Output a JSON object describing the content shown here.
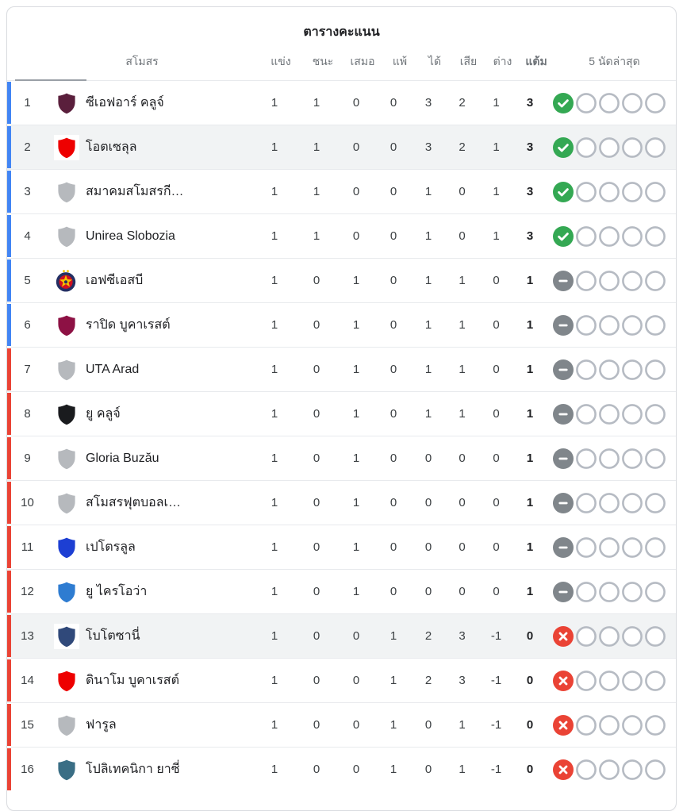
{
  "title": "ตารางคะแนน",
  "columns": {
    "club": "สโมสร",
    "played": "แข่ง",
    "win": "ชนะ",
    "draw": "เสมอ",
    "loss": "แพ้",
    "gf": "ได้",
    "ga": "เสีย",
    "gd": "ต่าง",
    "pts": "แต้ม",
    "form": "5 นัดล่าสุด"
  },
  "colors": {
    "accent_blue": "#4285f4",
    "accent_red": "#ea4335",
    "form_win": "#34a853",
    "form_draw": "#80868b",
    "form_loss": "#ea4335",
    "form_empty_border": "#b6bbc3",
    "row_highlight": "#f1f3f4",
    "generic_badge": "#b6b9bd"
  },
  "standings": [
    {
      "rank": "1",
      "name": "ซีเอฟอาร์ คลูจ์",
      "badge": {
        "type": "shield",
        "color": "#5a1f3c",
        "bg": "transparent"
      },
      "zone": "blue",
      "highlight": false,
      "played": "1",
      "win": "1",
      "draw": "0",
      "loss": "0",
      "gf": "3",
      "ga": "2",
      "gd": "1",
      "pts": "3",
      "form": "win"
    },
    {
      "rank": "2",
      "name": "โอตเซลุล",
      "badge": {
        "type": "shield",
        "color": "#ee0000",
        "bg": "#ffffff"
      },
      "zone": "blue",
      "highlight": true,
      "played": "1",
      "win": "1",
      "draw": "0",
      "loss": "0",
      "gf": "3",
      "ga": "2",
      "gd": "1",
      "pts": "3",
      "form": "win"
    },
    {
      "rank": "3",
      "name": "สมาคมสโมสรกี…",
      "badge": {
        "type": "shield",
        "color": "#b6b9bd",
        "bg": "transparent"
      },
      "zone": "blue",
      "highlight": false,
      "played": "1",
      "win": "1",
      "draw": "0",
      "loss": "0",
      "gf": "1",
      "ga": "0",
      "gd": "1",
      "pts": "3",
      "form": "win"
    },
    {
      "rank": "4",
      "name": "Unirea Slobozia",
      "badge": {
        "type": "shield",
        "color": "#b6b9bd",
        "bg": "transparent"
      },
      "zone": "blue",
      "highlight": false,
      "played": "1",
      "win": "1",
      "draw": "0",
      "loss": "0",
      "gf": "1",
      "ga": "0",
      "gd": "1",
      "pts": "3",
      "form": "win"
    },
    {
      "rank": "5",
      "name": "เอฟซีเอสบี",
      "badge": {
        "type": "fcsb",
        "color": "#232f63",
        "bg": "transparent"
      },
      "zone": "blue",
      "highlight": false,
      "played": "1",
      "win": "0",
      "draw": "1",
      "loss": "0",
      "gf": "1",
      "ga": "1",
      "gd": "0",
      "pts": "1",
      "form": "draw"
    },
    {
      "rank": "6",
      "name": "ราปิด บูคาเรสต์",
      "badge": {
        "type": "shield",
        "color": "#8d1144",
        "bg": "transparent"
      },
      "zone": "blue",
      "highlight": false,
      "played": "1",
      "win": "0",
      "draw": "1",
      "loss": "0",
      "gf": "1",
      "ga": "1",
      "gd": "0",
      "pts": "1",
      "form": "draw"
    },
    {
      "rank": "7",
      "name": "UTA Arad",
      "badge": {
        "type": "shield",
        "color": "#b6b9bd",
        "bg": "transparent"
      },
      "zone": "red",
      "highlight": false,
      "played": "1",
      "win": "0",
      "draw": "1",
      "loss": "0",
      "gf": "1",
      "ga": "1",
      "gd": "0",
      "pts": "1",
      "form": "draw"
    },
    {
      "rank": "8",
      "name": "ยู คลูจ์",
      "badge": {
        "type": "shield",
        "color": "#1a1b1e",
        "bg": "transparent"
      },
      "zone": "red",
      "highlight": false,
      "played": "1",
      "win": "0",
      "draw": "1",
      "loss": "0",
      "gf": "1",
      "ga": "1",
      "gd": "0",
      "pts": "1",
      "form": "draw"
    },
    {
      "rank": "9",
      "name": "Gloria Buzău",
      "badge": {
        "type": "shield",
        "color": "#b6b9bd",
        "bg": "transparent"
      },
      "zone": "red",
      "highlight": false,
      "played": "1",
      "win": "0",
      "draw": "1",
      "loss": "0",
      "gf": "0",
      "ga": "0",
      "gd": "0",
      "pts": "1",
      "form": "draw"
    },
    {
      "rank": "10",
      "name": "สโมสรฟุตบอลเ…",
      "badge": {
        "type": "shield",
        "color": "#b6b9bd",
        "bg": "transparent"
      },
      "zone": "red",
      "highlight": false,
      "played": "1",
      "win": "0",
      "draw": "1",
      "loss": "0",
      "gf": "0",
      "ga": "0",
      "gd": "0",
      "pts": "1",
      "form": "draw"
    },
    {
      "rank": "11",
      "name": "เปโตรลูล",
      "badge": {
        "type": "shield",
        "color": "#1d3fd3",
        "bg": "transparent"
      },
      "zone": "red",
      "highlight": false,
      "played": "1",
      "win": "0",
      "draw": "1",
      "loss": "0",
      "gf": "0",
      "ga": "0",
      "gd": "0",
      "pts": "1",
      "form": "draw"
    },
    {
      "rank": "12",
      "name": "ยู ไครโอว่า",
      "badge": {
        "type": "shield",
        "color": "#2e7cd1",
        "bg": "transparent"
      },
      "zone": "red",
      "highlight": false,
      "played": "1",
      "win": "0",
      "draw": "1",
      "loss": "0",
      "gf": "0",
      "ga": "0",
      "gd": "0",
      "pts": "1",
      "form": "draw"
    },
    {
      "rank": "13",
      "name": "โบโตซานี่",
      "badge": {
        "type": "shield",
        "color": "#30497a",
        "bg": "#ffffff"
      },
      "zone": "red",
      "highlight": true,
      "played": "1",
      "win": "0",
      "draw": "0",
      "loss": "1",
      "gf": "2",
      "ga": "3",
      "gd": "-1",
      "pts": "0",
      "form": "loss"
    },
    {
      "rank": "14",
      "name": "ดินาโม บูคาเรสต์",
      "badge": {
        "type": "shield",
        "color": "#ee0000",
        "bg": "transparent"
      },
      "zone": "red",
      "highlight": false,
      "played": "1",
      "win": "0",
      "draw": "0",
      "loss": "1",
      "gf": "2",
      "ga": "3",
      "gd": "-1",
      "pts": "0",
      "form": "loss"
    },
    {
      "rank": "15",
      "name": "ฟารูล",
      "badge": {
        "type": "shield",
        "color": "#b6b9bd",
        "bg": "transparent"
      },
      "zone": "red",
      "highlight": false,
      "played": "1",
      "win": "0",
      "draw": "0",
      "loss": "1",
      "gf": "0",
      "ga": "1",
      "gd": "-1",
      "pts": "0",
      "form": "loss"
    },
    {
      "rank": "16",
      "name": "โปลิเทคนิกา ยาซี่",
      "badge": {
        "type": "shield",
        "color": "#3a6e85",
        "bg": "transparent"
      },
      "zone": "red",
      "highlight": false,
      "played": "1",
      "win": "0",
      "draw": "0",
      "loss": "1",
      "gf": "0",
      "ga": "1",
      "gd": "-1",
      "pts": "0",
      "form": "loss"
    }
  ]
}
